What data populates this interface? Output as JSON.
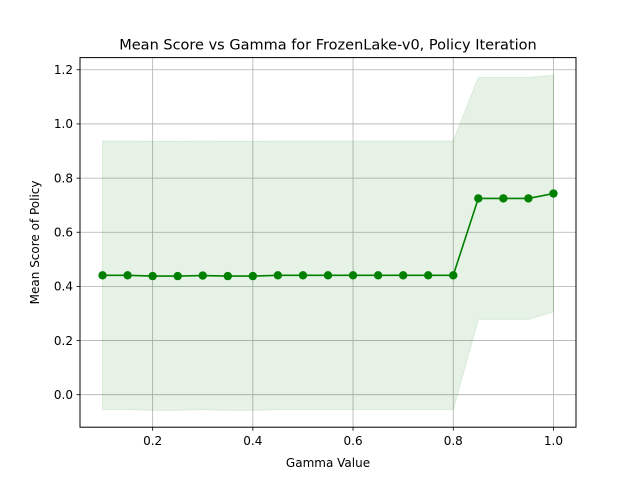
{
  "chart_data": {
    "type": "line",
    "title": "Mean Score vs Gamma for FrozenLake-v0, Policy Iteration",
    "xlabel": "Gamma Value",
    "ylabel": "Mean Score of Policy",
    "xlim": [
      0.055,
      1.045
    ],
    "ylim": [
      -0.12,
      1.245
    ],
    "grid": true,
    "x_ticks": [
      0.2,
      0.4,
      0.6,
      0.8,
      1.0
    ],
    "x_tick_labels": [
      "0.2",
      "0.4",
      "0.6",
      "0.8",
      "1.0"
    ],
    "y_ticks": [
      0.0,
      0.2,
      0.4,
      0.6,
      0.8,
      1.0,
      1.2
    ],
    "y_tick_labels": [
      "0.0",
      "0.2",
      "0.4",
      "0.6",
      "0.8",
      "1.0",
      "1.2"
    ],
    "line_color": "#008000",
    "band_color": "#008000",
    "series": [
      {
        "x": [
          0.1,
          0.15,
          0.2,
          0.25,
          0.3,
          0.35,
          0.4,
          0.45,
          0.5,
          0.55,
          0.6,
          0.65,
          0.7,
          0.75,
          0.8,
          0.85,
          0.9,
          0.95,
          1.0
        ],
        "y": [
          0.441,
          0.441,
          0.438,
          0.438,
          0.44,
          0.438,
          0.438,
          0.441,
          0.441,
          0.441,
          0.441,
          0.441,
          0.441,
          0.441,
          0.441,
          0.725,
          0.725,
          0.725,
          0.743
        ],
        "upper": [
          0.937,
          0.937,
          0.936,
          0.936,
          0.937,
          0.936,
          0.936,
          0.937,
          0.937,
          0.937,
          0.937,
          0.937,
          0.937,
          0.937,
          0.937,
          1.172,
          1.172,
          1.172,
          1.18
        ],
        "lower": [
          -0.055,
          -0.055,
          -0.058,
          -0.058,
          -0.055,
          -0.058,
          -0.058,
          -0.055,
          -0.055,
          -0.055,
          -0.055,
          -0.055,
          -0.055,
          -0.055,
          -0.055,
          0.278,
          0.278,
          0.278,
          0.306
        ]
      }
    ]
  }
}
